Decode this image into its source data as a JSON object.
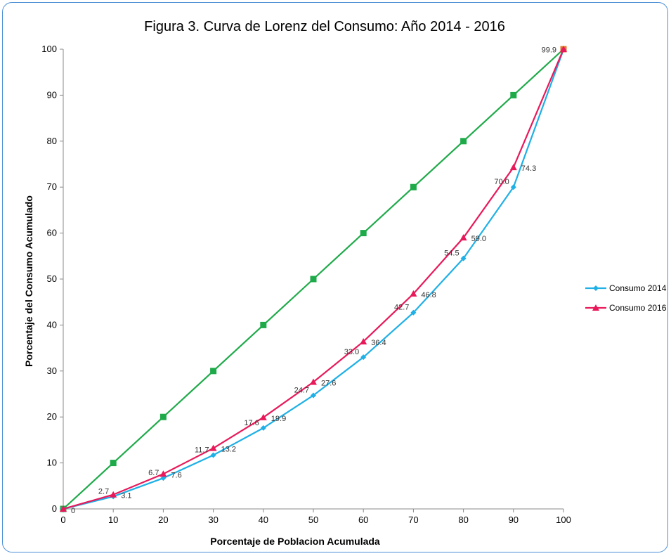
{
  "chart_data": {
    "type": "line",
    "title": "Figura 3. Curva de Lorenz del Consumo: Año 2014 - 2016",
    "xlabel": "Porcentaje de Poblacion Acumulada",
    "ylabel": "Porcentaje del Consumo Acumulado",
    "xlim": [
      0,
      100
    ],
    "ylim": [
      0,
      100
    ],
    "x_ticks": [
      "0",
      "10",
      "20",
      "30",
      "40",
      "50",
      "60",
      "70",
      "80",
      "90",
      "100"
    ],
    "y_ticks": [
      "0",
      "10",
      "20",
      "30",
      "40",
      "50",
      "60",
      "70",
      "80",
      "90",
      "100"
    ],
    "grid": false,
    "legend_position": "right",
    "x": [
      0,
      10,
      20,
      30,
      40,
      50,
      60,
      70,
      80,
      90,
      100
    ],
    "series": [
      {
        "values": [
          0,
          10,
          20,
          30,
          40,
          50,
          60,
          70,
          80,
          90,
          100
        ],
        "color": "#1faa4a",
        "marker": "square",
        "in_legend": false
      },
      {
        "name": "Consumo 2014",
        "values": [
          0,
          2.7,
          6.7,
          11.7,
          17.6,
          24.7,
          33.0,
          42.7,
          54.5,
          70.0,
          99.9
        ],
        "labels": [
          "0",
          "2.7",
          "6.7",
          "11.7",
          "17.6",
          "24.7",
          "33.0",
          "42.7",
          "54.5",
          "70.0",
          "99.9"
        ],
        "color": "#1fb0e6",
        "marker": "diamond",
        "in_legend": true
      },
      {
        "name": "Consumo 2016",
        "values": [
          0,
          3.1,
          7.6,
          13.2,
          19.9,
          27.6,
          36.4,
          46.8,
          59.0,
          74.3,
          100
        ],
        "labels": [
          "",
          "3.1",
          "7.6",
          "13.2",
          "19.9",
          "27.6",
          "36.4",
          "46.8",
          "59.0",
          "74.3",
          ""
        ],
        "color": "#e8195a",
        "marker": "triangle",
        "in_legend": true
      }
    ],
    "end_marker_color": "#e07b2a"
  }
}
